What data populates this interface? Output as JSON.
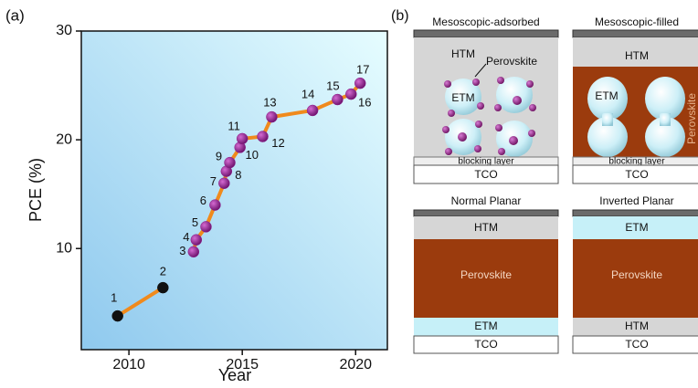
{
  "chart_data": {
    "type": "line",
    "panel_label": "(a)",
    "x_label": "Year",
    "y_label": "PCE (%)",
    "xlim": [
      2007.9,
      2021.4
    ],
    "ylim": [
      0.7,
      30
    ],
    "xticks": [
      2010,
      2015,
      2020
    ],
    "yticks": [
      10,
      20,
      30
    ],
    "line_color": "#f08a1c",
    "series": [
      {
        "color": "#111111",
        "x": [
          2009.5,
          2011.5
        ],
        "values": [
          3.8,
          6.4
        ],
        "point_labels": [
          "1",
          "2"
        ]
      },
      {
        "color": "#8e1e8c",
        "x": [
          2012.85,
          2012.97,
          2013.4,
          2013.8,
          2014.2,
          2014.3,
          2014.45,
          2014.9,
          2015.0,
          2015.9,
          2016.3,
          2018.1,
          2019.2,
          2019.8,
          2020.2
        ],
        "values": [
          9.7,
          10.8,
          12.0,
          14.0,
          16.0,
          17.1,
          17.9,
          19.3,
          20.1,
          20.3,
          22.1,
          22.7,
          23.7,
          24.2,
          25.2
        ],
        "point_labels": [
          "3",
          "4",
          "5",
          "6",
          "7",
          "8",
          "9",
          "10",
          "11",
          "12",
          "13",
          "14",
          "15",
          "16",
          "17"
        ]
      }
    ]
  },
  "panel_b": {
    "label": "(b)",
    "panels": [
      {
        "title": "Mesoscopic-adsorbed",
        "htm": "HTM",
        "perovskite": "Perovskite",
        "etm": "ETM",
        "blocking": "blocking layer",
        "tco": "TCO"
      },
      {
        "title": "Mesoscopic-filled",
        "htm": "HTM",
        "perovskite": "Perovskite",
        "etm": "ETM",
        "blocking": "blocking layer",
        "tco": "TCO"
      },
      {
        "title": "Normal Planar",
        "htm": "HTM",
        "perovskite": "Perovskite",
        "etm": "ETM",
        "tco": "TCO"
      },
      {
        "title": "Inverted Planar",
        "etm": "ETM",
        "perovskite": "Perovskite",
        "htm": "HTM",
        "tco": "TCO"
      }
    ]
  }
}
